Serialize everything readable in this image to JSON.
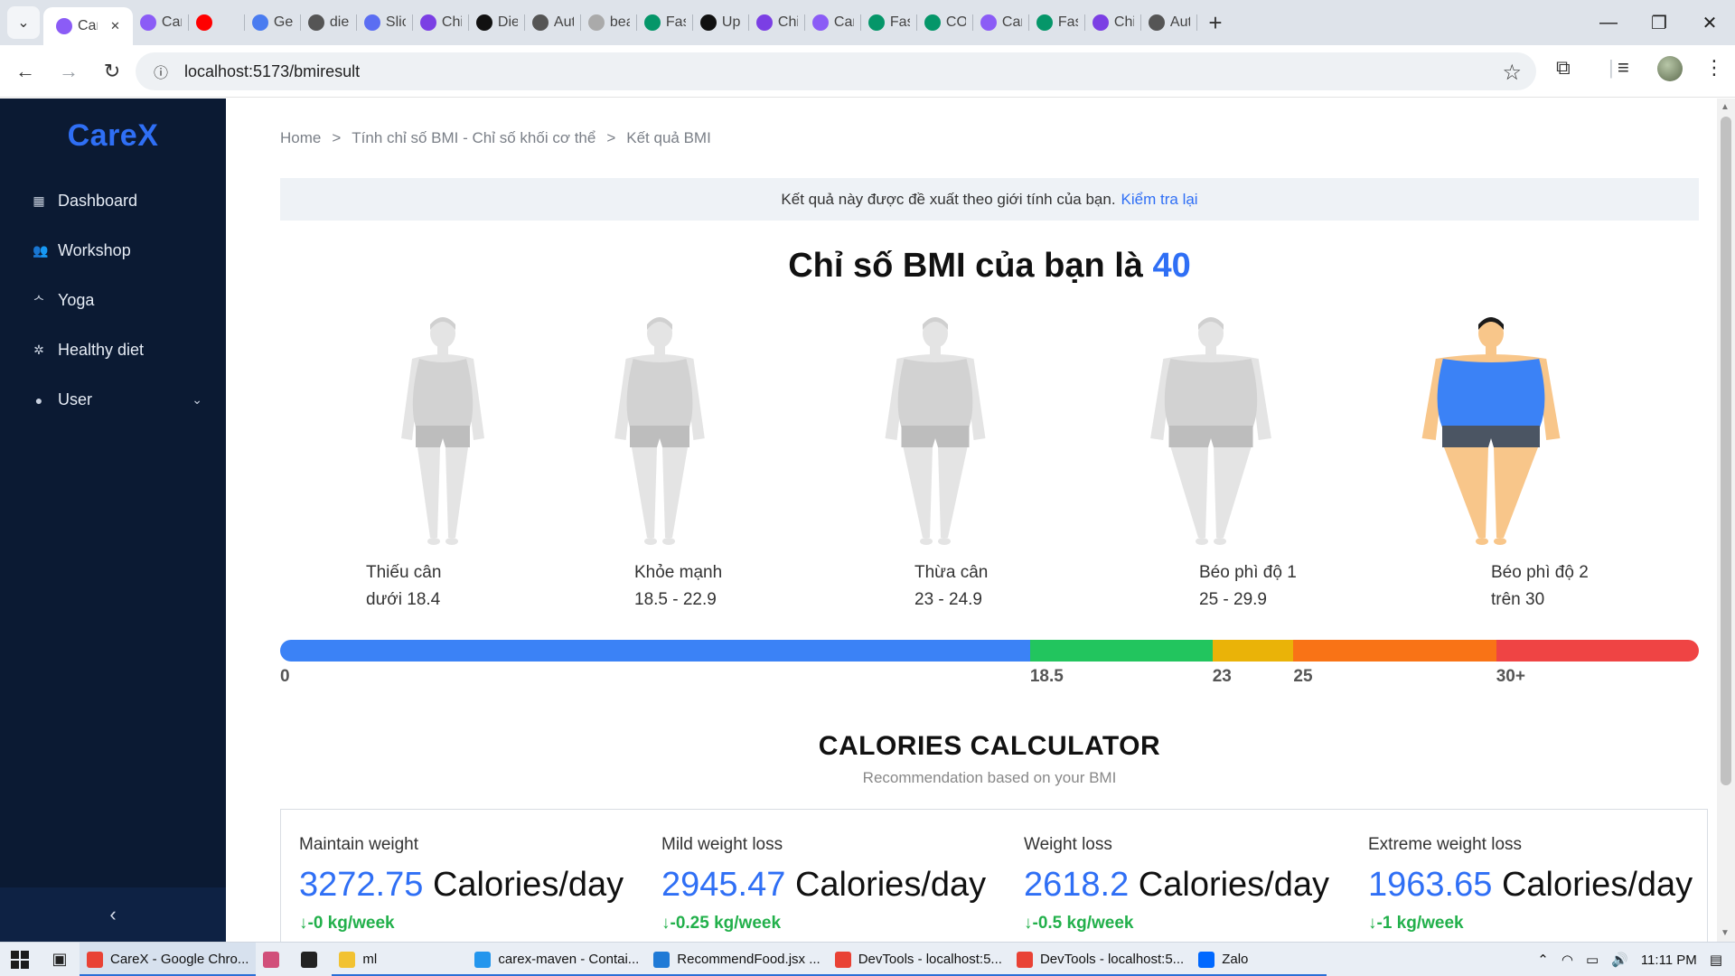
{
  "browser": {
    "tabs": [
      {
        "title": "Car",
        "icon": "vite-icon",
        "color": "#8b5cf6",
        "active": true
      },
      {
        "title": "Car",
        "icon": "vite-icon",
        "color": "#8b5cf6"
      },
      {
        "title": "",
        "icon": "youtube-icon",
        "color": "#ff0000"
      },
      {
        "title": "Ge",
        "icon": "gemini-icon",
        "color": "#4a7cf0"
      },
      {
        "title": "die",
        "icon": "globe-icon",
        "color": "#555555"
      },
      {
        "title": "Slic",
        "icon": "slides-icon",
        "color": "#5b6ef2"
      },
      {
        "title": "Chi",
        "icon": "copilot-icon",
        "color": "#7b3fe4"
      },
      {
        "title": "Die",
        "icon": "github-icon",
        "color": "#111111"
      },
      {
        "title": "Aut",
        "icon": "globe-icon",
        "color": "#555555"
      },
      {
        "title": "bea",
        "icon": "page-icon",
        "color": "#aaaaaa"
      },
      {
        "title": "Fas",
        "icon": "fastapi-icon",
        "color": "#059669"
      },
      {
        "title": "Up",
        "icon": "github-icon",
        "color": "#111111"
      },
      {
        "title": "Chi",
        "icon": "copilot-icon",
        "color": "#7b3fe4"
      },
      {
        "title": "Car",
        "icon": "vite-icon",
        "color": "#8b5cf6"
      },
      {
        "title": "Fas",
        "icon": "fastapi-icon",
        "color": "#059669"
      },
      {
        "title": "CO",
        "icon": "fastapi-icon",
        "color": "#059669"
      },
      {
        "title": "Car",
        "icon": "vite-icon",
        "color": "#8b5cf6"
      },
      {
        "title": "Fas",
        "icon": "fastapi-icon",
        "color": "#059669"
      },
      {
        "title": "Chi",
        "icon": "copilot-icon",
        "color": "#7b3fe4"
      },
      {
        "title": "Aut",
        "icon": "globe-icon",
        "color": "#555555"
      }
    ],
    "url": "localhost:5173/bmiresult"
  },
  "sidebar": {
    "brand": "CareX",
    "items": [
      {
        "label": "Dashboard",
        "icon": "grid-icon"
      },
      {
        "label": "Workshop",
        "icon": "users-icon"
      },
      {
        "label": "Yoga",
        "icon": "yoga-icon"
      },
      {
        "label": "Healthy diet",
        "icon": "leaf-icon"
      },
      {
        "label": "User",
        "icon": "user-icon"
      }
    ]
  },
  "breadcrumb": {
    "home": "Home",
    "sep1": ">",
    "bmi_calc": "Tính chỉ số BMI - Chỉ số khối cơ thể",
    "sep2": ">",
    "current": "Kết quả BMI"
  },
  "banner": {
    "text": "Kết quả này được đề xuất theo giới tính của bạn.",
    "link": "Kiểm tra lại"
  },
  "result": {
    "title_prefix": "Chỉ số BMI của bạn là",
    "bmi_value": "40"
  },
  "categories": [
    {
      "name": "Thiếu cân",
      "range": "dưới 18.4",
      "active": false
    },
    {
      "name": "Khỏe mạnh",
      "range": "18.5 - 22.9",
      "active": false
    },
    {
      "name": "Thừa cân",
      "range": "23 - 24.9",
      "active": false
    },
    {
      "name": "Béo phì độ 1",
      "range": "25 - 29.9",
      "active": false
    },
    {
      "name": "Béo phì độ 2",
      "range": "trên 30",
      "active": true
    }
  ],
  "scale": {
    "segments": [
      {
        "from": 0,
        "to": 18.5,
        "color": "#3b82f6"
      },
      {
        "from": 18.5,
        "to": 23,
        "color": "#22c55e"
      },
      {
        "from": 23,
        "to": 25,
        "color": "#eab308"
      },
      {
        "from": 25,
        "to": 30,
        "color": "#f97316"
      },
      {
        "from": 30,
        "to": 35,
        "color": "#ef4444"
      }
    ],
    "ticks": [
      "0",
      "18.5",
      "23",
      "25",
      "30+"
    ]
  },
  "calories": {
    "title": "CALORIES CALCULATOR",
    "subtitle": "Recommendation based on your BMI",
    "unit": "Calories/day",
    "items": [
      {
        "label": "Maintain weight",
        "value": "3272.75",
        "rate": "-0 kg/week"
      },
      {
        "label": "Mild weight loss",
        "value": "2945.47",
        "rate": "-0.25 kg/week"
      },
      {
        "label": "Weight loss",
        "value": "2618.2",
        "rate": "-0.5 kg/week"
      },
      {
        "label": "Extreme weight loss",
        "value": "1963.65",
        "rate": "-1 kg/week"
      }
    ]
  },
  "taskbar": {
    "apps": [
      {
        "label": "CareX - Google Chro...",
        "icon": "chrome-icon",
        "color": "#e94235",
        "active": true
      },
      {
        "label": "",
        "icon": "snip-icon",
        "color": "#d14f7a"
      },
      {
        "label": "",
        "icon": "terminal-icon",
        "color": "#222222"
      },
      {
        "label": "ml",
        "icon": "folder-icon",
        "color": "#f2c232"
      },
      {
        "label": "carex-maven - Contai...",
        "icon": "docker-icon",
        "color": "#2496ed"
      },
      {
        "label": "RecommendFood.jsx ...",
        "icon": "vscode-icon",
        "color": "#1f7ad6"
      },
      {
        "label": "DevTools - localhost:5...",
        "icon": "chrome-icon",
        "color": "#e94235"
      },
      {
        "label": "DevTools - localhost:5...",
        "icon": "chrome-icon",
        "color": "#e94235"
      },
      {
        "label": "Zalo",
        "icon": "zalo-icon",
        "color": "#0068ff"
      }
    ],
    "time": "11:11 PM"
  }
}
